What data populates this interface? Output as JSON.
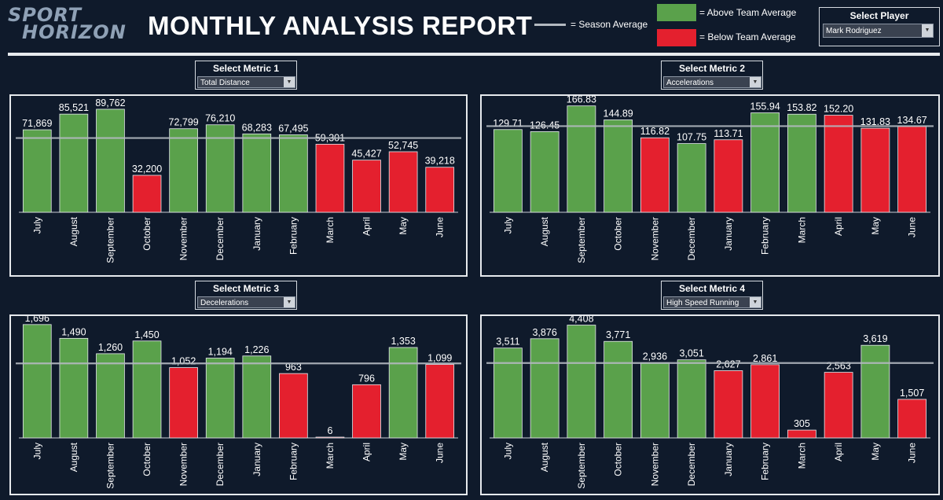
{
  "logo": {
    "line1": "SPORT",
    "line2": "HORIZON"
  },
  "title": "MONTHLY ANALYSIS REPORT",
  "legend": {
    "season_avg": "= Season Average",
    "above": "= Above Team Average",
    "below": "= Below Team Average"
  },
  "colors": {
    "above": "#5aa14b",
    "below": "#e4202e",
    "avg_line": "#b3b9c0",
    "bg": "#0f1a2b"
  },
  "player": {
    "title": "Select Player",
    "value": "Mark Rodriguez"
  },
  "chart_data": [
    {
      "type": "bar",
      "selector_title": "Select Metric 1",
      "metric": "Total Distance",
      "categories": [
        "July",
        "August",
        "September",
        "October",
        "November",
        "December",
        "January",
        "February",
        "March",
        "April",
        "May",
        "June"
      ],
      "values": [
        71869,
        85521,
        89762,
        32200,
        72799,
        76210,
        68283,
        67495,
        59301,
        45427,
        52745,
        39218
      ],
      "labels": [
        "71,869",
        "85,521",
        "89,762",
        "32,200",
        "72,799",
        "76,210",
        "68,283",
        "67,495",
        "59,301",
        "45,427",
        "52,745",
        "39,218"
      ],
      "status": [
        "above",
        "above",
        "above",
        "below",
        "above",
        "above",
        "above",
        "above",
        "below",
        "below",
        "below",
        "below"
      ],
      "season_average": 64700,
      "ylim": [
        0,
        100000
      ]
    },
    {
      "type": "bar",
      "selector_title": "Select Metric 2",
      "metric": "Accelerations",
      "categories": [
        "July",
        "August",
        "September",
        "October",
        "November",
        "December",
        "January",
        "February",
        "March",
        "April",
        "May",
        "June"
      ],
      "values": [
        129.71,
        126.45,
        166.83,
        144.89,
        116.82,
        107.75,
        113.71,
        155.94,
        153.82,
        152.2,
        131.83,
        134.67
      ],
      "labels": [
        "129.71",
        "126.45",
        "166.83",
        "144.89",
        "116.82",
        "107.75",
        "113.71",
        "155.94",
        "153.82",
        "152.20",
        "131.83",
        "134.67"
      ],
      "status": [
        "above",
        "above",
        "above",
        "above",
        "below",
        "above",
        "below",
        "above",
        "above",
        "below",
        "below",
        "below"
      ],
      "season_average": 135.1,
      "ylim": [
        0,
        180
      ]
    },
    {
      "type": "bar",
      "selector_title": "Select Metric 3",
      "metric": "Decelerations",
      "categories": [
        "July",
        "August",
        "September",
        "October",
        "November",
        "December",
        "January",
        "February",
        "March",
        "April",
        "May",
        "June"
      ],
      "values": [
        1696,
        1490,
        1260,
        1450,
        1052,
        1194,
        1226,
        963,
        6,
        796,
        1353,
        1099
      ],
      "labels": [
        "1,696",
        "1,490",
        "1,260",
        "1,450",
        "1,052",
        "1,194",
        "1,226",
        "963",
        "6",
        "796",
        "1,353",
        "1,099"
      ],
      "status": [
        "above",
        "above",
        "above",
        "above",
        "below",
        "above",
        "above",
        "below",
        "below",
        "below",
        "above",
        "below"
      ],
      "season_average": 1115,
      "ylim": [
        0,
        1800
      ]
    },
    {
      "type": "bar",
      "selector_title": "Select Metric 4",
      "metric": "High Speed Running",
      "categories": [
        "July",
        "August",
        "September",
        "October",
        "November",
        "December",
        "January",
        "February",
        "March",
        "April",
        "May",
        "June"
      ],
      "values": [
        3511,
        3876,
        4408,
        3771,
        2936,
        3051,
        2627,
        2861,
        305,
        2563,
        3619,
        1507
      ],
      "labels": [
        "3,511",
        "3,876",
        "4,408",
        "3,771",
        "2,936",
        "3,051",
        "2,627",
        "2,861",
        "305",
        "2,563",
        "3,619",
        "1,507"
      ],
      "status": [
        "above",
        "above",
        "above",
        "above",
        "above",
        "above",
        "below",
        "below",
        "below",
        "below",
        "above",
        "below"
      ],
      "season_average": 2925,
      "ylim": [
        0,
        4700
      ]
    }
  ]
}
